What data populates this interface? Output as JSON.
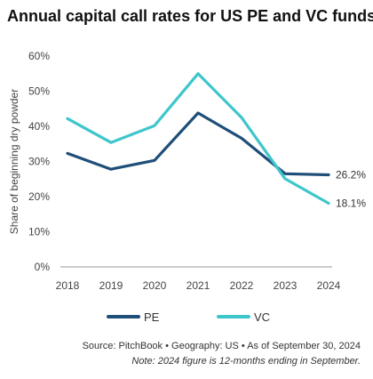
{
  "chart_data": {
    "type": "line",
    "title": "Annual capital call rates for US PE and VC funds",
    "ylabel": "Share of beginning dry powder",
    "xlabel": "",
    "x": [
      "2018",
      "2019",
      "2020",
      "2021",
      "2022",
      "2023",
      "2024"
    ],
    "y_ticks": [
      "0%",
      "10%",
      "20%",
      "30%",
      "40%",
      "50%",
      "60%"
    ],
    "ylim": [
      0,
      60
    ],
    "grid": false,
    "legend_position": "bottom",
    "series": [
      {
        "name": "PE",
        "color": "#1f4e79",
        "values": [
          32.3,
          27.8,
          30.3,
          43.8,
          36.6,
          26.5,
          26.2
        ],
        "end_label": "26.2%"
      },
      {
        "name": "VC",
        "color": "#3ec6cc",
        "values": [
          42.2,
          35.4,
          40.2,
          55.0,
          42.5,
          25.1,
          18.1
        ],
        "end_label": "18.1%"
      }
    ],
    "source": "Source: PitchBook • Geography: US • As of September 30, 2024",
    "note": "Note: 2024 figure is 12-months ending in September."
  }
}
